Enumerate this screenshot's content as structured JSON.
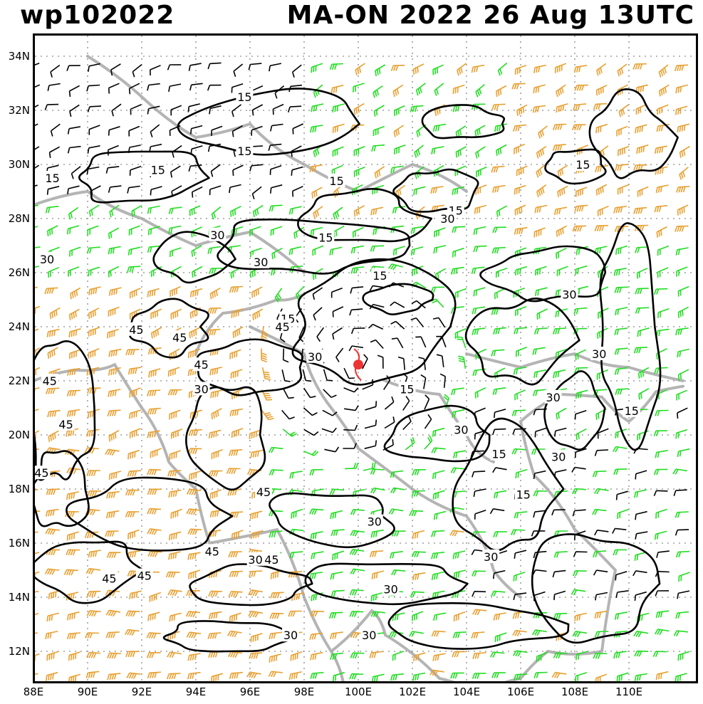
{
  "title_left": "wp102022",
  "title_right": "MA-ON 2022 26 Aug 13UTC",
  "lat_labels": [
    "34N",
    "32N",
    "30N",
    "28N",
    "26N",
    "24N",
    "22N",
    "20N",
    "18N",
    "16N",
    "14N",
    "12N"
  ],
  "lon_labels": [
    "88E",
    "90E",
    "92E",
    "94E",
    "96E",
    "98E",
    "100E",
    "102E",
    "104E",
    "106E",
    "108E",
    "110E"
  ],
  "contour_labels": [
    "15",
    "15",
    "15",
    "15",
    "15",
    "15",
    "15",
    "15",
    "15",
    "15",
    "15",
    "15",
    "15",
    "15",
    "30",
    "30",
    "30",
    "30",
    "30",
    "30",
    "30",
    "30",
    "30",
    "30",
    "30",
    "30",
    "30",
    "30",
    "30",
    "30",
    "30",
    "45",
    "45",
    "45",
    "45",
    "45",
    "45",
    "45",
    "45",
    "45",
    "45",
    "45",
    "45"
  ],
  "colors": {
    "green": "#22dd22",
    "orange": "#e8a030",
    "dark_orange": "#e06a20",
    "red": "#ee3333",
    "black": "#000000",
    "coast": "#b4b4b4",
    "grid": "#a0a0a0"
  },
  "storm_center": {
    "lon": 100.0,
    "lat": 22.6,
    "name": "MA-ON"
  }
}
